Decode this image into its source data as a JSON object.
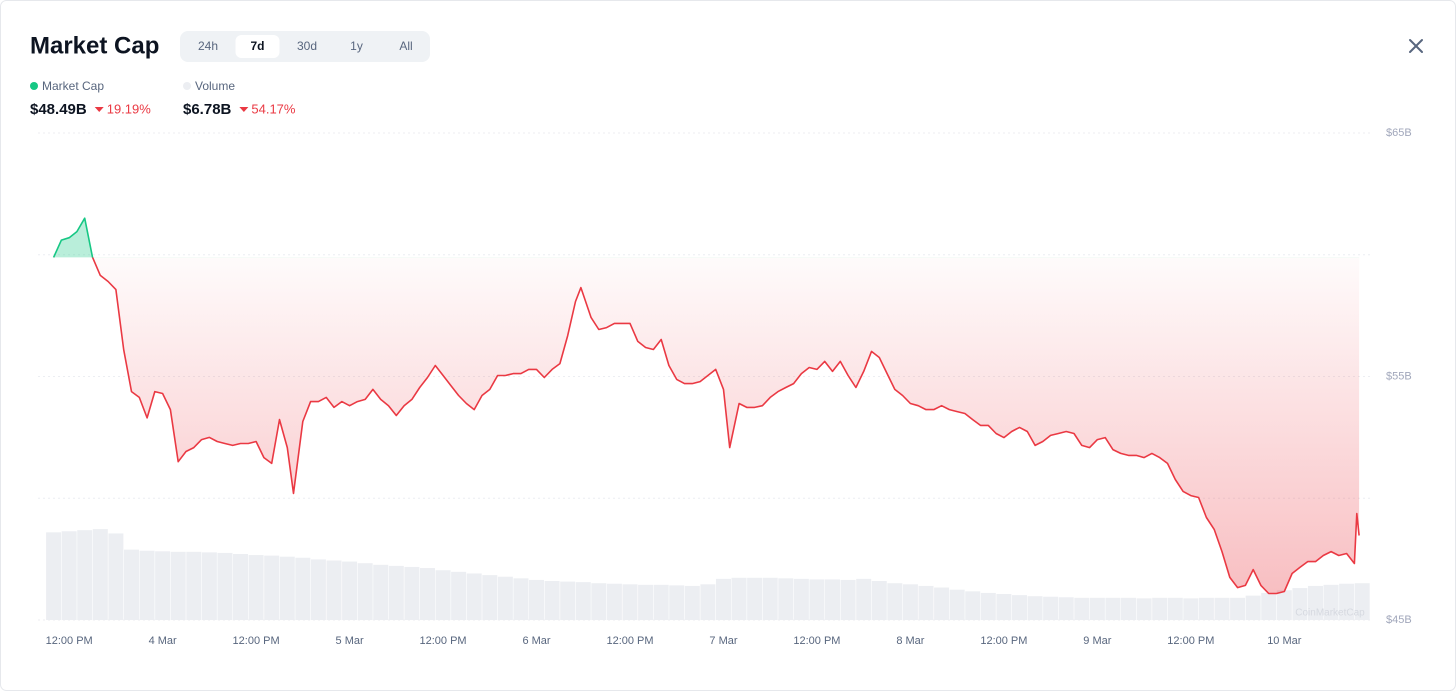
{
  "header": {
    "title": "Market Cap",
    "tabs": [
      "24h",
      "7d",
      "30d",
      "1y",
      "All"
    ],
    "selected_tab": 1,
    "watermark": "CoinMarketCap"
  },
  "chart_data": {
    "type": "line",
    "x": [
      -2,
      -1,
      0,
      1,
      2,
      3,
      4,
      5,
      6,
      7,
      8,
      9,
      10,
      11,
      12,
      13,
      14,
      15,
      16,
      17,
      18,
      19,
      20,
      21,
      22,
      23,
      24,
      25,
      26,
      27,
      28,
      28.8,
      30,
      31,
      32,
      33,
      34,
      35,
      36,
      37,
      38,
      39,
      40,
      41,
      42,
      43,
      44,
      45,
      46,
      47,
      48,
      49,
      50,
      51,
      52,
      53,
      54,
      55,
      56,
      57,
      58,
      59,
      60,
      61,
      62,
      63,
      64,
      65,
      65.7,
      67,
      68,
      69,
      70,
      71,
      72,
      73,
      74,
      75,
      76,
      77,
      78,
      79,
      80,
      81,
      82,
      83,
      84,
      84.8,
      86,
      87,
      88,
      89,
      90,
      91,
      92,
      93,
      94,
      95,
      96,
      97,
      98,
      99,
      100,
      101,
      102,
      103,
      104,
      105,
      106,
      107,
      108,
      109,
      110,
      111,
      112,
      113,
      114,
      115,
      116,
      117,
      118,
      119,
      120,
      121,
      122,
      123,
      124,
      125,
      126,
      127,
      128,
      129,
      130,
      131,
      132,
      133,
      134,
      135,
      136,
      137,
      138,
      139,
      140,
      141,
      142,
      143,
      144,
      145,
      146,
      147,
      148,
      149,
      150,
      151,
      152,
      153,
      154,
      155,
      156,
      157,
      158,
      159,
      160,
      161,
      162,
      163,
      164,
      165,
      165.3,
      165.6
    ],
    "series": [
      {
        "name": "Market Cap",
        "color": "#ea3943",
        "up_color": "#16c784",
        "latest": "$48.49B",
        "change": "19.19%",
        "values": [
          59.89,
          60.6,
          60.7,
          60.95,
          61.5,
          59.9,
          59.15,
          58.9,
          58.57,
          56.1,
          54.38,
          54.14,
          53.3,
          54.38,
          54.3,
          53.64,
          51.5,
          51.92,
          52.08,
          52.41,
          52.5,
          52.33,
          52.25,
          52.17,
          52.25,
          52.25,
          52.33,
          51.67,
          51.43,
          53.23,
          52.08,
          50.2,
          53.15,
          53.97,
          53.97,
          54.14,
          53.73,
          53.97,
          53.8,
          53.97,
          54.06,
          54.47,
          54.06,
          53.8,
          53.4,
          53.8,
          54.06,
          54.55,
          54.96,
          55.45,
          55.04,
          54.63,
          54.22,
          53.89,
          53.64,
          54.22,
          54.47,
          55.04,
          55.04,
          55.12,
          55.12,
          55.29,
          55.29,
          54.96,
          55.29,
          55.53,
          56.68,
          58.08,
          58.65,
          57.42,
          56.93,
          57.01,
          57.18,
          57.18,
          57.18,
          56.44,
          56.19,
          56.11,
          56.52,
          55.45,
          54.88,
          54.71,
          54.71,
          54.79,
          55.04,
          55.29,
          54.47,
          52.08,
          53.89,
          53.73,
          53.73,
          53.8,
          54.14,
          54.38,
          54.55,
          54.71,
          55.12,
          55.37,
          55.29,
          55.62,
          55.21,
          55.62,
          55.04,
          54.55,
          55.21,
          56.03,
          55.78,
          55.12,
          54.47,
          54.22,
          53.89,
          53.8,
          53.64,
          53.64,
          53.8,
          53.64,
          53.56,
          53.48,
          53.23,
          52.99,
          52.99,
          52.66,
          52.49,
          52.74,
          52.91,
          52.74,
          52.17,
          52.33,
          52.58,
          52.66,
          52.74,
          52.66,
          52.17,
          52.08,
          52.41,
          52.49,
          52.0,
          51.84,
          51.76,
          51.76,
          51.67,
          51.84,
          51.67,
          51.43,
          50.77,
          50.28,
          50.11,
          50.03,
          49.21,
          48.72,
          47.81,
          46.75,
          46.33,
          46.42,
          47.07,
          46.42,
          46.09,
          46.09,
          46.17,
          46.91,
          47.16,
          47.4,
          47.4,
          47.65,
          47.81,
          47.65,
          47.73,
          47.32,
          49.37,
          48.47
        ]
      },
      {
        "name": "Volume",
        "color": "#eceef2",
        "axis": "y2",
        "latest": "$6.78B",
        "change": "54.17%",
        "x": [
          -2,
          0,
          2,
          4,
          6,
          8,
          10,
          12,
          14,
          16,
          18,
          20,
          22,
          24,
          26,
          28,
          30,
          32,
          34,
          36,
          38,
          40,
          42,
          44,
          46,
          48,
          50,
          52,
          54,
          56,
          58,
          60,
          62,
          64,
          66,
          68,
          70,
          72,
          74,
          76,
          78,
          80,
          82,
          84,
          86,
          88,
          90,
          92,
          94,
          96,
          98,
          100,
          102,
          104,
          106,
          108,
          110,
          112,
          114,
          116,
          118,
          120,
          122,
          124,
          126,
          128,
          130,
          132,
          134,
          136,
          138,
          140,
          142,
          144,
          146,
          148,
          150,
          152,
          154,
          156,
          158,
          160,
          162,
          164,
          166
        ],
        "values": [
          16.2,
          16.4,
          16.6,
          16.8,
          16.0,
          13.0,
          12.8,
          12.7,
          12.6,
          12.6,
          12.5,
          12.4,
          12.2,
          12.0,
          11.9,
          11.7,
          11.5,
          11.2,
          11.0,
          10.8,
          10.5,
          10.2,
          10.0,
          9.8,
          9.6,
          9.2,
          8.9,
          8.6,
          8.3,
          8.0,
          7.7,
          7.4,
          7.2,
          7.1,
          7.0,
          6.8,
          6.7,
          6.6,
          6.5,
          6.5,
          6.4,
          6.3,
          6.6,
          7.6,
          7.8,
          7.8,
          7.8,
          7.7,
          7.6,
          7.5,
          7.5,
          7.4,
          7.6,
          7.2,
          6.8,
          6.6,
          6.3,
          6.0,
          5.6,
          5.3,
          5.0,
          4.8,
          4.6,
          4.4,
          4.3,
          4.2,
          4.1,
          4.1,
          4.1,
          4.1,
          4.0,
          4.1,
          4.1,
          4.0,
          4.1,
          4.1,
          4.1,
          4.5,
          5.0,
          5.5,
          5.9,
          6.3,
          6.5,
          6.7,
          6.8
        ]
      }
    ],
    "xlim": [
      -4,
      167
    ],
    "xticks": [
      {
        "value": 0,
        "label": "12:00 PM"
      },
      {
        "value": 12,
        "label": "4 Mar"
      },
      {
        "value": 24,
        "label": "12:00 PM"
      },
      {
        "value": 36,
        "label": "5 Mar"
      },
      {
        "value": 48,
        "label": "12:00 PM"
      },
      {
        "value": 60,
        "label": "6 Mar"
      },
      {
        "value": 72,
        "label": "12:00 PM"
      },
      {
        "value": 84,
        "label": "7 Mar"
      },
      {
        "value": 96,
        "label": "12:00 PM"
      },
      {
        "value": 108,
        "label": "8 Mar"
      },
      {
        "value": 120,
        "label": "12:00 PM"
      },
      {
        "value": 132,
        "label": "9 Mar"
      },
      {
        "value": 144,
        "label": "12:00 PM"
      },
      {
        "value": 156,
        "label": "10 Mar"
      }
    ],
    "ylim": [
      45,
      65
    ],
    "yticks": [
      {
        "value": 45,
        "label": "$45B"
      },
      {
        "value": 50,
        "label": null
      },
      {
        "value": 55,
        "label": "$55B"
      },
      {
        "value": 60,
        "label": null
      },
      {
        "value": 65,
        "label": "$65B"
      }
    ],
    "y2lim": [
      0,
      90
    ],
    "grid": true
  }
}
